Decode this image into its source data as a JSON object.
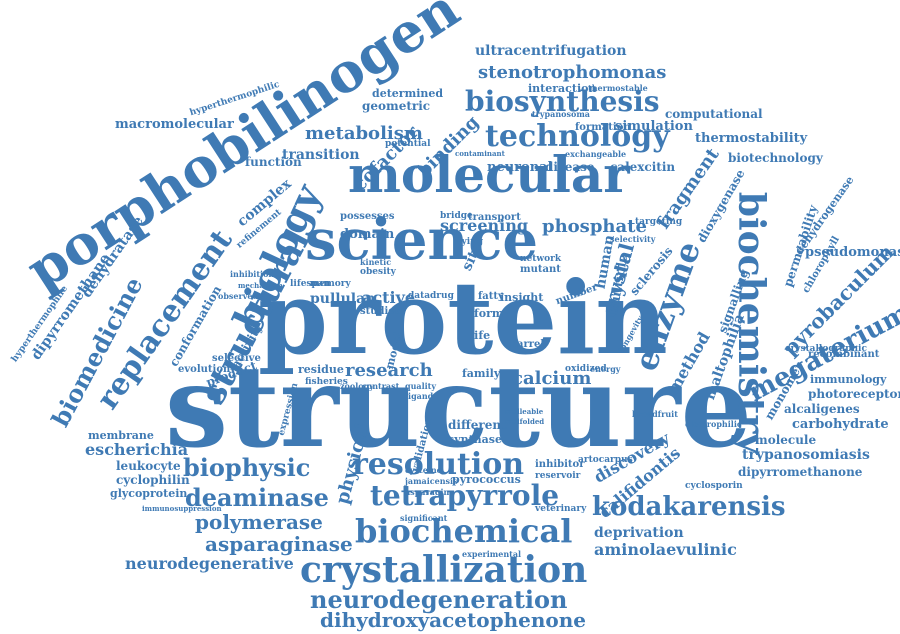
{
  "word_cloud": {
    "color": "#3f7ab4",
    "words": [
      {
        "text": "structure",
        "size": 112
      },
      {
        "text": "protein",
        "size": 100
      },
      {
        "text": "porphobilinogen",
        "size": 54
      },
      {
        "text": "molecular",
        "size": 50
      },
      {
        "text": "science",
        "size": 56
      },
      {
        "text": "biochemistry",
        "size": 36
      },
      {
        "text": "biology",
        "size": 38
      },
      {
        "text": "structural",
        "size": 34
      },
      {
        "text": "replacement",
        "size": 30
      },
      {
        "text": "enzyme",
        "size": 32
      },
      {
        "text": "crystallization",
        "size": 36
      },
      {
        "text": "biochemical",
        "size": 32
      },
      {
        "text": "resolution",
        "size": 30
      },
      {
        "text": "tetrapyrrole",
        "size": 28
      },
      {
        "text": "kodakarensis",
        "size": 26
      },
      {
        "text": "technology",
        "size": 30
      },
      {
        "text": "biosynthesis",
        "size": 28
      },
      {
        "text": "biomedicine",
        "size": 24
      },
      {
        "text": "megaterium",
        "size": 26
      },
      {
        "text": "biophysic",
        "size": 24
      },
      {
        "text": "deaminase",
        "size": 24
      },
      {
        "text": "neurodegeneration",
        "size": 24
      },
      {
        "text": "dihydroxyacetophenone",
        "size": 20
      },
      {
        "text": "stenotrophomonas",
        "size": 18
      },
      {
        "text": "crystal",
        "size": 20
      },
      {
        "text": "fragment",
        "size": 18
      },
      {
        "text": "pyrobaculum",
        "size": 20
      },
      {
        "text": "phosphate",
        "size": 18
      },
      {
        "text": "polymerase",
        "size": 20
      },
      {
        "text": "asparaginase",
        "size": 20
      },
      {
        "text": "neurodegenerative",
        "size": 16
      },
      {
        "text": "aminolaevulinic",
        "size": 16
      },
      {
        "text": "deprivation",
        "size": 14
      },
      {
        "text": "calcium",
        "size": 18
      },
      {
        "text": "research",
        "size": 18
      },
      {
        "text": "discovery",
        "size": 16
      },
      {
        "text": "califidontis",
        "size": 16
      },
      {
        "text": "physical",
        "size": 18
      },
      {
        "text": "metabolism",
        "size": 18
      },
      {
        "text": "cofactor",
        "size": 18
      },
      {
        "text": "binding",
        "size": 18
      },
      {
        "text": "ultracentrifugation",
        "size": 14
      },
      {
        "text": "macromolecular",
        "size": 13
      },
      {
        "text": "thermostability",
        "size": 13
      },
      {
        "text": "computational",
        "size": 12
      },
      {
        "text": "simulation",
        "size": 13
      },
      {
        "text": "biotechnology",
        "size": 12
      },
      {
        "text": "transition",
        "size": 14
      },
      {
        "text": "function",
        "size": 12
      },
      {
        "text": "geometric",
        "size": 12
      },
      {
        "text": "determined",
        "size": 11
      },
      {
        "text": "interaction",
        "size": 11
      },
      {
        "text": "formation",
        "size": 10
      },
      {
        "text": "neuronal",
        "size": 13
      },
      {
        "text": "disease",
        "size": 12
      },
      {
        "text": "calexcitin",
        "size": 12
      },
      {
        "text": "screening",
        "size": 16
      },
      {
        "text": "complex",
        "size": 14
      },
      {
        "text": "dehydratase",
        "size": 14
      },
      {
        "text": "dipyrromethane",
        "size": 14
      },
      {
        "text": "domain",
        "size": 13
      },
      {
        "text": "possesses",
        "size": 10
      },
      {
        "text": "human",
        "size": 14
      },
      {
        "text": "multiple",
        "size": 13
      },
      {
        "text": "sclerosis",
        "size": 12
      },
      {
        "text": "method",
        "size": 16
      },
      {
        "text": "maltophilia",
        "size": 14
      },
      {
        "text": "signalling",
        "size": 12
      },
      {
        "text": "dioxygenase",
        "size": 12
      },
      {
        "text": "permeability",
        "size": 12
      },
      {
        "text": "dehydrogenase",
        "size": 11
      },
      {
        "text": "chlorophyll",
        "size": 10
      },
      {
        "text": "pseudomonas",
        "size": 13
      },
      {
        "text": "pullulan",
        "size": 14
      },
      {
        "text": "active",
        "size": 16
      },
      {
        "text": "conformation",
        "size": 12
      },
      {
        "text": "activity",
        "size": 12
      },
      {
        "text": "product",
        "size": 12
      },
      {
        "text": "selective",
        "size": 10
      },
      {
        "text": "evolution",
        "size": 10
      },
      {
        "text": "residue",
        "size": 11
      },
      {
        "text": "fisheries",
        "size": 9
      },
      {
        "text": "membrane",
        "size": 11
      },
      {
        "text": "escherichia",
        "size": 16
      },
      {
        "text": "leukocyte",
        "size": 12
      },
      {
        "text": "cyclophilin",
        "size": 12
      },
      {
        "text": "glycoprotein",
        "size": 11
      },
      {
        "text": "immunosuppression",
        "size": 7
      },
      {
        "text": "hyperthermophilic",
        "size": 9
      },
      {
        "text": "hyperthermophile",
        "size": 9
      },
      {
        "text": "dipyrromethanone",
        "size": 12
      },
      {
        "text": "trypanosomiasis",
        "size": 14
      },
      {
        "text": "carbohydrate",
        "size": 13
      },
      {
        "text": "molecule",
        "size": 12
      },
      {
        "text": "alcaligenes",
        "size": 12
      },
      {
        "text": "photoreceptor",
        "size": 12
      },
      {
        "text": "immunology",
        "size": 11
      },
      {
        "text": "recombinant",
        "size": 10
      },
      {
        "text": "monomer",
        "size": 12
      },
      {
        "text": "crystallographic",
        "size": 9
      },
      {
        "text": "synthase",
        "size": 11
      },
      {
        "text": "different",
        "size": 12
      },
      {
        "text": "pyrococcus",
        "size": 11
      },
      {
        "text": "inhibitor",
        "size": 10
      },
      {
        "text": "reservoir",
        "size": 9
      },
      {
        "text": "artocarpus",
        "size": 9
      },
      {
        "text": "cyclosporin",
        "size": 9
      },
      {
        "text": "veterinary",
        "size": 9
      },
      {
        "text": "experimental",
        "size": 8
      },
      {
        "text": "significant",
        "size": 8
      },
      {
        "text": "family",
        "size": 11
      },
      {
        "text": "oxidized",
        "size": 9
      },
      {
        "text": "energy",
        "size": 8
      },
      {
        "text": "electrophilic",
        "size": 8
      },
      {
        "text": "breadfruit",
        "size": 8
      },
      {
        "text": "validation",
        "size": 10
      },
      {
        "text": "barrel",
        "size": 10
      },
      {
        "text": "insight",
        "size": 11
      },
      {
        "text": "fatty",
        "size": 10
      },
      {
        "text": "number",
        "size": 10
      },
      {
        "text": "mutant",
        "size": 10
      },
      {
        "text": "network",
        "size": 9
      },
      {
        "text": "transport",
        "size": 10
      },
      {
        "text": "bridge",
        "size": 9
      },
      {
        "text": "targeting",
        "size": 9
      },
      {
        "text": "selectivity",
        "size": 8
      },
      {
        "text": "exchangeable",
        "size": 8
      },
      {
        "text": "trypanosoma",
        "size": 8
      },
      {
        "text": "thermostable",
        "size": 8
      },
      {
        "text": "potential",
        "size": 9
      },
      {
        "text": "contaminant",
        "size": 7
      },
      {
        "text": "studies",
        "size": 10
      },
      {
        "text": "memory",
        "size": 9
      },
      {
        "text": "lifespan",
        "size": 9
      },
      {
        "text": "flying",
        "size": 9
      },
      {
        "text": "data",
        "size": 9
      },
      {
        "text": "drug",
        "size": 9
      },
      {
        "text": "obesity",
        "size": 9
      },
      {
        "text": "kinetic",
        "size": 8
      },
      {
        "text": "refinement",
        "size": 9
      },
      {
        "text": "inhibition",
        "size": 8
      },
      {
        "text": "mechanism",
        "size": 7
      },
      {
        "text": "observed",
        "size": 8
      },
      {
        "text": "expression",
        "size": 9
      },
      {
        "text": "longevity",
        "size": 8
      },
      {
        "text": "ligand",
        "size": 8
      },
      {
        "text": "quality",
        "size": 8
      },
      {
        "text": "contrast",
        "size": 8
      },
      {
        "text": "zoology",
        "size": 8
      },
      {
        "text": "cysteine",
        "size": 8
      },
      {
        "text": "jamaicensis",
        "size": 8
      },
      {
        "text": "asparagine",
        "size": 8
      },
      {
        "text": "malleable",
        "size": 7
      },
      {
        "text": "malfolded",
        "size": 7
      },
      {
        "text": "model",
        "size": 11
      },
      {
        "text": "form",
        "size": 11
      },
      {
        "text": "life",
        "size": 11
      },
      {
        "text": "site",
        "size": 14
      }
    ]
  }
}
